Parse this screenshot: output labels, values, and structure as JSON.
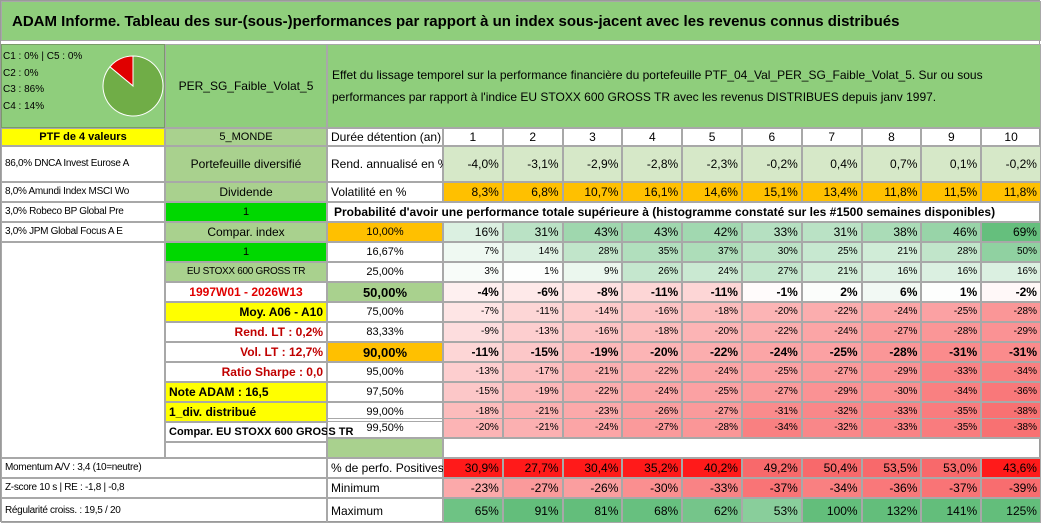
{
  "title": "ADAM Informe. Tableau des sur-(sous-)performances par rapport à un index sous-jacent avec les revenus connus distribués",
  "pie": {
    "legend": [
      "C1 : 0%  |  C5 : 0%",
      "C2 : 0%",
      "C3 : 86%",
      "C4 : 14%"
    ],
    "slices": [
      {
        "label": "C3",
        "percent": 86,
        "color": "#70ad47"
      },
      {
        "label": "C4",
        "percent": 14,
        "color": "#e00000"
      }
    ]
  },
  "fund_name": "PER_SG_Faible_Volat_5",
  "description": "Effet du lissage temporel sur la performance financière du portefeuille PTF_04_Val_PER_SG_Faible_Volat_5. Sur ou sous performances par rapport à l'indice EU STOXX 600 GROSS TR avec les revenus DISTRIBUES depuis janv 1997.",
  "ptf_header": "PTF de 4 valeurs",
  "holdings": [
    "86,0% DNCA Invest Eurose A",
    "8,0% Amundi Index MSCI Wo",
    "3,0% Robeco BP Global Pre",
    "3,0% JPM Global Focus A E"
  ],
  "category": "5_MONDE",
  "portfolio_type": "Portefeuille diversifié",
  "dividend_label": "Dividende",
  "dividend_value": "1",
  "compar_index_label": "Compar. index",
  "compar_index_value": "1",
  "index_name": "EU STOXX 600 GROSS TR",
  "period": "1997W01 - 2026W13",
  "moy": "Moy. A06 - A10",
  "rend_lt": "Rend. LT : 0,2%",
  "vol_lt": "Vol. LT : 12,7%",
  "sharpe": "Ratio Sharpe : 0,0",
  "note_adam": "Note ADAM : 16,5",
  "div_distribue": "1_div. distribué",
  "compar_full": "Compar. EU STOXX 600 GROSS TR",
  "momentum": "Momentum A/V : 3,4 (10=neutre)",
  "zscore": "Z-score 10 s  |  RE : -1,8  |  -0,8",
  "regularite": "Régularité croiss. : 19,5 / 20",
  "duration_label": "Durée détention (an)",
  "years": [
    "1",
    "2",
    "3",
    "4",
    "5",
    "6",
    "7",
    "8",
    "9",
    "10"
  ],
  "rend_label": "Rend. annualisé en %",
  "rend": [
    "-4,0%",
    "-3,1%",
    "-2,9%",
    "-2,8%",
    "-2,3%",
    "-0,2%",
    "0,4%",
    "0,7%",
    "0,1%",
    "-0,2%"
  ],
  "vol_label": "Volatilité en %",
  "vol": [
    "8,3%",
    "6,8%",
    "10,7%",
    "16,1%",
    "14,6%",
    "15,1%",
    "13,4%",
    "11,8%",
    "11,5%",
    "11,8%"
  ],
  "prob_label": "Probabilité d'avoir une performance totale supérieure à (histogramme constaté sur les #1500 semaines disponibles)",
  "quantiles": [
    {
      "q": "10,00%",
      "v": [
        "16%",
        "31%",
        "43%",
        "43%",
        "42%",
        "33%",
        "31%",
        "38%",
        "46%",
        "69%"
      ]
    },
    {
      "q": "16,67%",
      "v": [
        "7%",
        "14%",
        "28%",
        "35%",
        "37%",
        "30%",
        "25%",
        "21%",
        "28%",
        "50%"
      ]
    },
    {
      "q": "25,00%",
      "v": [
        "3%",
        "1%",
        "9%",
        "26%",
        "24%",
        "27%",
        "21%",
        "16%",
        "16%",
        "16%"
      ]
    },
    {
      "q": "50,00%",
      "v": [
        "-4%",
        "-6%",
        "-8%",
        "-11%",
        "-11%",
        "-1%",
        "2%",
        "6%",
        "1%",
        "-2%"
      ]
    },
    {
      "q": "75,00%",
      "v": [
        "-7%",
        "-11%",
        "-14%",
        "-16%",
        "-18%",
        "-20%",
        "-22%",
        "-24%",
        "-25%",
        "-28%"
      ]
    },
    {
      "q": "83,33%",
      "v": [
        "-9%",
        "-13%",
        "-16%",
        "-18%",
        "-20%",
        "-22%",
        "-24%",
        "-27%",
        "-28%",
        "-29%"
      ]
    },
    {
      "q": "90,00%",
      "v": [
        "-11%",
        "-15%",
        "-19%",
        "-20%",
        "-22%",
        "-24%",
        "-25%",
        "-28%",
        "-31%",
        "-31%"
      ]
    },
    {
      "q": "95,00%",
      "v": [
        "-13%",
        "-17%",
        "-21%",
        "-22%",
        "-24%",
        "-25%",
        "-27%",
        "-29%",
        "-33%",
        "-34%"
      ]
    },
    {
      "q": "97,50%",
      "v": [
        "-15%",
        "-19%",
        "-22%",
        "-24%",
        "-25%",
        "-27%",
        "-29%",
        "-30%",
        "-34%",
        "-36%"
      ]
    },
    {
      "q": "99,00%",
      "v": [
        "-18%",
        "-21%",
        "-23%",
        "-26%",
        "-27%",
        "-31%",
        "-32%",
        "-33%",
        "-35%",
        "-38%"
      ]
    },
    {
      "q": "99,50%",
      "v": [
        "-20%",
        "-21%",
        "-24%",
        "-27%",
        "-28%",
        "-34%",
        "-32%",
        "-33%",
        "-35%",
        "-38%"
      ]
    }
  ],
  "pos_label": "% de perfo. Positives",
  "pos": [
    "30,9%",
    "27,7%",
    "30,4%",
    "35,2%",
    "40,2%",
    "49,2%",
    "50,4%",
    "53,5%",
    "53,0%",
    "43,6%"
  ],
  "min_label": "Minimum",
  "min": [
    "-23%",
    "-27%",
    "-26%",
    "-30%",
    "-33%",
    "-37%",
    "-34%",
    "-36%",
    "-37%",
    "-39%"
  ],
  "max_label": "Maximum",
  "max": [
    "65%",
    "91%",
    "81%",
    "68%",
    "62%",
    "53%",
    "100%",
    "132%",
    "141%",
    "125%"
  ]
}
